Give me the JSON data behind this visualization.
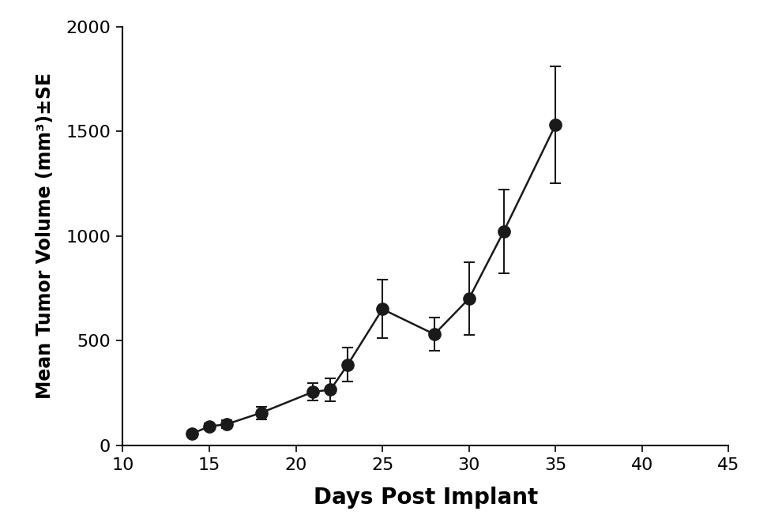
{
  "x": [
    14,
    15,
    16,
    18,
    21,
    22,
    23,
    25,
    28,
    30,
    32,
    35
  ],
  "y": [
    55,
    90,
    100,
    155,
    255,
    265,
    385,
    650,
    530,
    700,
    1020,
    1530
  ],
  "yerr": [
    10,
    15,
    18,
    30,
    40,
    55,
    80,
    140,
    80,
    175,
    200,
    280
  ],
  "xlabel": "Days Post Implant",
  "ylabel": "Mean Tumor Volume (mm³)±SE",
  "xlim": [
    10,
    45
  ],
  "ylim": [
    0,
    2000
  ],
  "xticks": [
    10,
    15,
    20,
    25,
    30,
    35,
    40,
    45
  ],
  "yticks": [
    0,
    500,
    1000,
    1500,
    2000
  ],
  "background_color": "#ffffff",
  "line_color": "#1a1a1a",
  "marker_color": "#1a1a1a",
  "marker_size": 11,
  "line_width": 1.8,
  "xlabel_fontsize": 20,
  "ylabel_fontsize": 17,
  "tick_fontsize": 16
}
